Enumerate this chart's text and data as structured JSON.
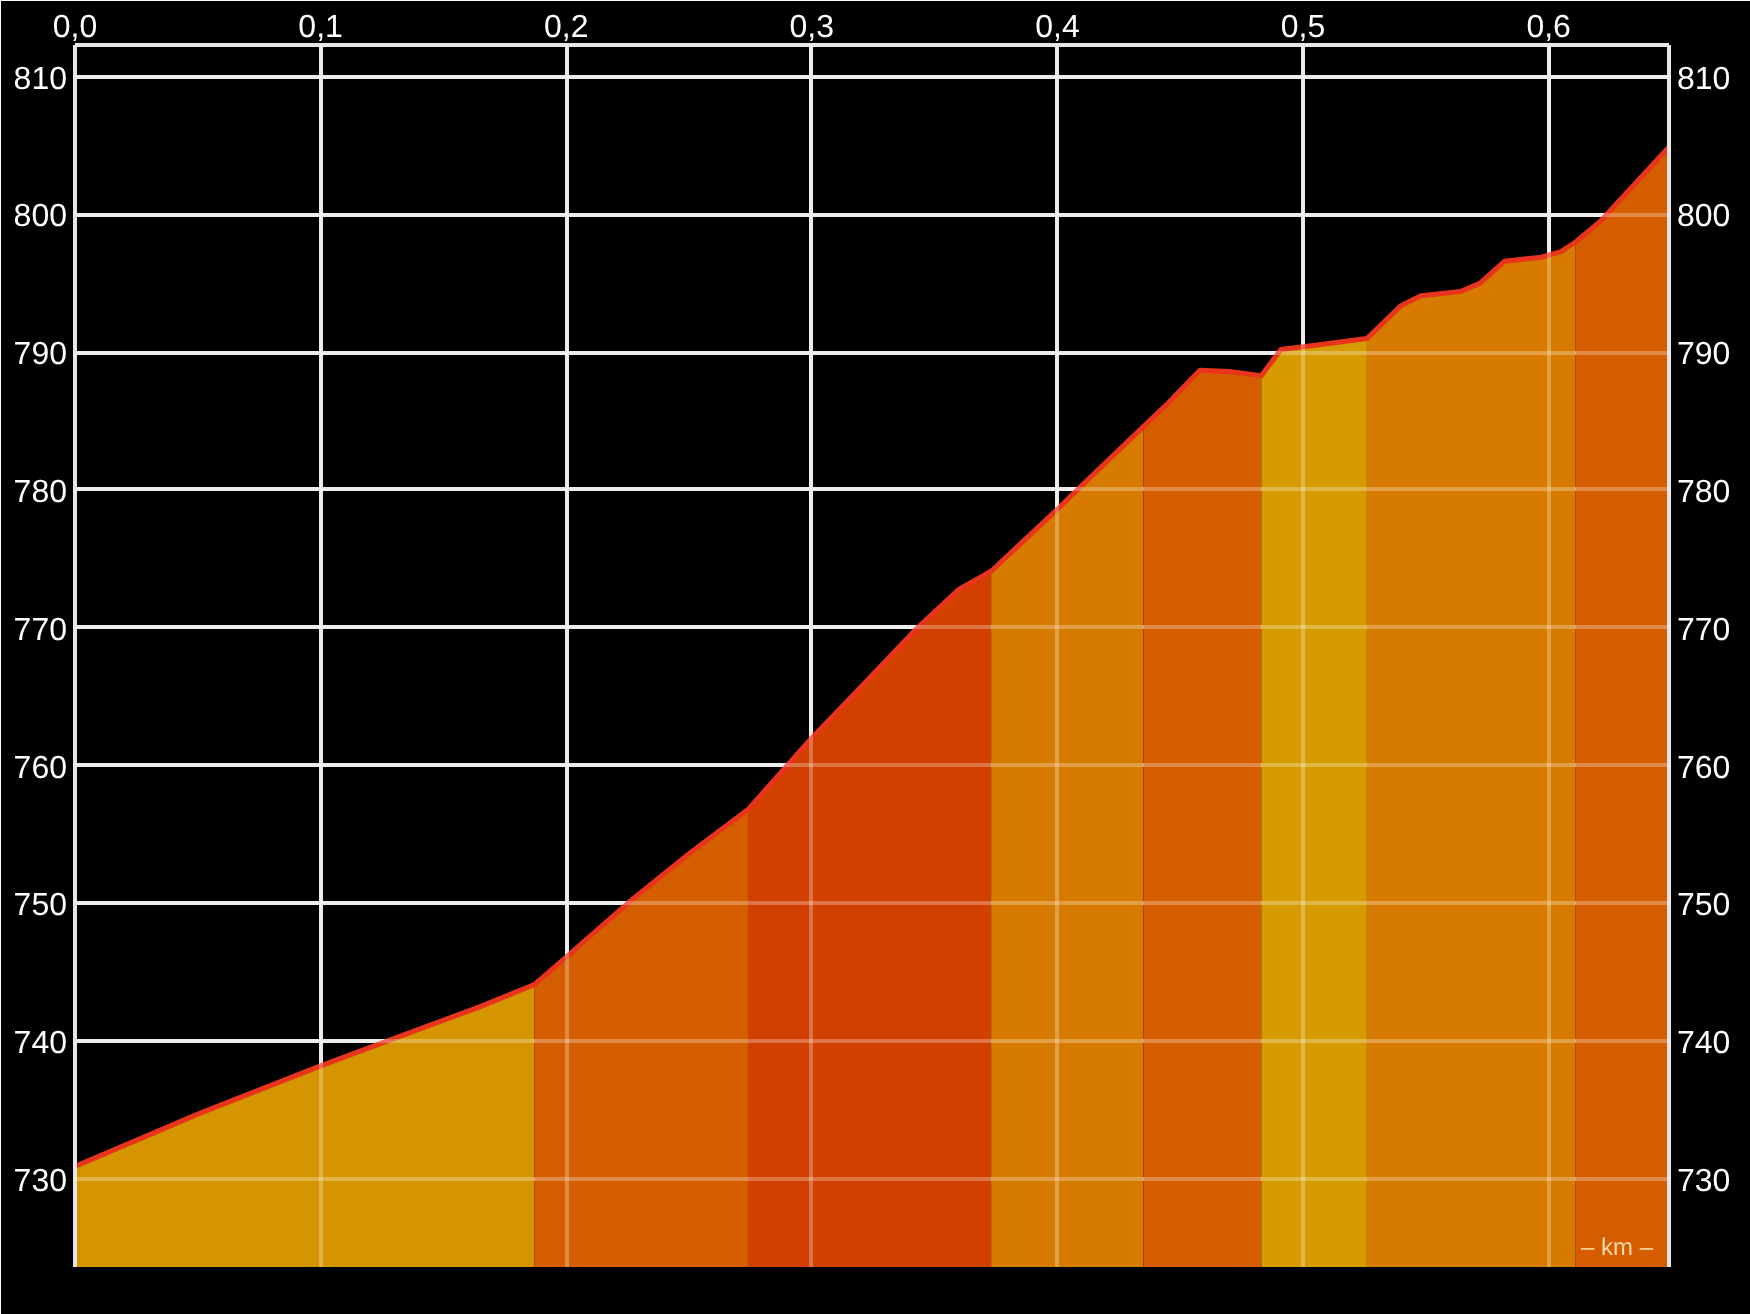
{
  "chart_data": {
    "type": "area",
    "xlabel": "– km –",
    "xlim": [
      0,
      0.649
    ],
    "xticks": [
      {
        "value": 0,
        "label": "0,0"
      },
      {
        "value": 0.1,
        "label": "0,1"
      },
      {
        "value": 0.2,
        "label": "0,2"
      },
      {
        "value": 0.3,
        "label": "0,3"
      },
      {
        "value": 0.4,
        "label": "0,4"
      },
      {
        "value": 0.5,
        "label": "0,5"
      },
      {
        "value": 0.6,
        "label": "0,6"
      }
    ],
    "ylim": [
      723.6,
      812.3
    ],
    "yticks": [
      730,
      740,
      750,
      760,
      770,
      780,
      790,
      800,
      810
    ],
    "y2lim": [
      723.6,
      812.3
    ],
    "y2ticks": [
      730,
      740,
      750,
      760,
      770,
      780,
      790,
      800,
      810
    ],
    "grid": true,
    "series": [
      {
        "color": "#d49500",
        "x": [
          0,
          0.05,
          0.1,
          0.127,
          0.165,
          0.187
        ],
        "values": [
          730.9,
          734.7,
          738.2,
          740.0,
          742.5,
          744.1
        ]
      },
      {
        "color": "#d45e00",
        "x": [
          0.187,
          0.2,
          0.225,
          0.25,
          0.274
        ],
        "values": [
          744.1,
          746.1,
          750.0,
          753.6,
          756.8
        ]
      },
      {
        "color": "#d24000",
        "x": [
          0.274,
          0.29,
          0.3,
          0.32,
          0.343,
          0.36,
          0.373
        ],
        "values": [
          756.8,
          760.0,
          762.0,
          765.7,
          770.0,
          772.8,
          774.1
        ]
      },
      {
        "color": "#d67a00",
        "x": [
          0.373,
          0.4,
          0.408,
          0.435
        ],
        "values": [
          774.1,
          778.6,
          780.0,
          784.6
        ]
      },
      {
        "color": "#d65c00",
        "x": [
          0.435,
          0.445,
          0.458,
          0.47,
          0.483
        ],
        "values": [
          784.6,
          786.3,
          788.7,
          788.6,
          788.3
        ]
      },
      {
        "color": "#d69b00",
        "x": [
          0.483,
          0.491,
          0.505,
          0.526
        ],
        "values": [
          788.3,
          790.2,
          790.5,
          791.0
        ]
      },
      {
        "color": "#d67a00",
        "x": [
          0.526,
          0.54,
          0.548,
          0.564,
          0.572,
          0.582,
          0.597,
          0.605,
          0.611
        ],
        "values": [
          791.0,
          793.4,
          794.1,
          794.4,
          795.0,
          796.6,
          796.9,
          797.3,
          798.0
        ]
      },
      {
        "color": "#d65c00",
        "x": [
          0.611,
          0.621,
          0.649
        ],
        "values": [
          798.0,
          799.5,
          804.9
        ]
      },
      {
        "type": "line",
        "color": "#e8341c",
        "x": [
          0,
          0.05,
          0.1,
          0.127,
          0.165,
          0.187,
          0.2,
          0.225,
          0.25,
          0.274,
          0.29,
          0.3,
          0.32,
          0.343,
          0.36,
          0.373,
          0.4,
          0.408,
          0.435,
          0.445,
          0.458,
          0.47,
          0.483,
          0.491,
          0.505,
          0.526,
          0.54,
          0.548,
          0.564,
          0.572,
          0.582,
          0.597,
          0.605,
          0.611,
          0.621,
          0.649
        ],
        "values": [
          730.9,
          734.7,
          738.2,
          740.0,
          742.5,
          744.1,
          746.1,
          750.0,
          753.6,
          756.8,
          760.0,
          762.0,
          765.7,
          770.0,
          772.8,
          774.1,
          778.6,
          780.0,
          784.6,
          786.3,
          788.7,
          788.6,
          788.3,
          790.2,
          790.5,
          791.0,
          793.4,
          794.1,
          794.4,
          795.0,
          796.6,
          796.9,
          797.3,
          798.0,
          799.5,
          804.9
        ]
      }
    ]
  }
}
